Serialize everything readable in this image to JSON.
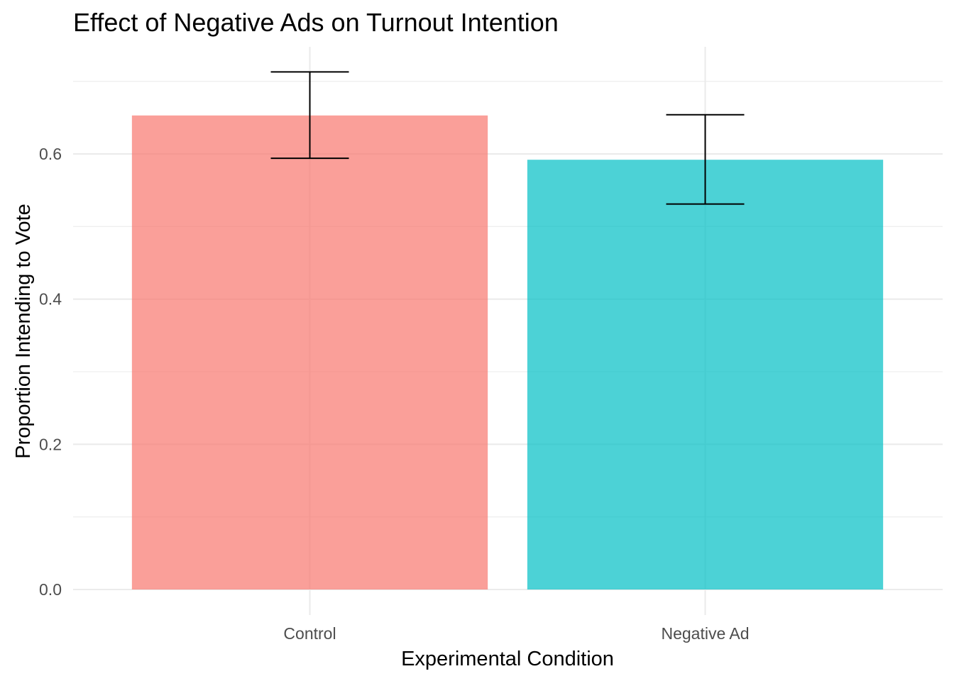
{
  "chart_data": {
    "type": "bar",
    "title": "Effect of Negative Ads on Turnout Intention",
    "xlabel": "Experimental Condition",
    "ylabel": "Proportion Intending to Vote",
    "categories": [
      "Control",
      "Negative Ad"
    ],
    "values": [
      0.653,
      0.592
    ],
    "error_bars": [
      {
        "lower": 0.594,
        "upper": 0.713
      },
      {
        "lower": 0.531,
        "upper": 0.654
      }
    ],
    "colors": [
      "#F8766D",
      "#00BFC4"
    ],
    "bar_opacity": 0.7,
    "ylim": [
      0,
      0.745
    ],
    "yticks": [
      0.0,
      0.2,
      0.4,
      0.6
    ],
    "ytick_labels": [
      "0.0",
      "0.2",
      "0.4",
      "0.6"
    ],
    "grid": true,
    "legend": "none"
  }
}
